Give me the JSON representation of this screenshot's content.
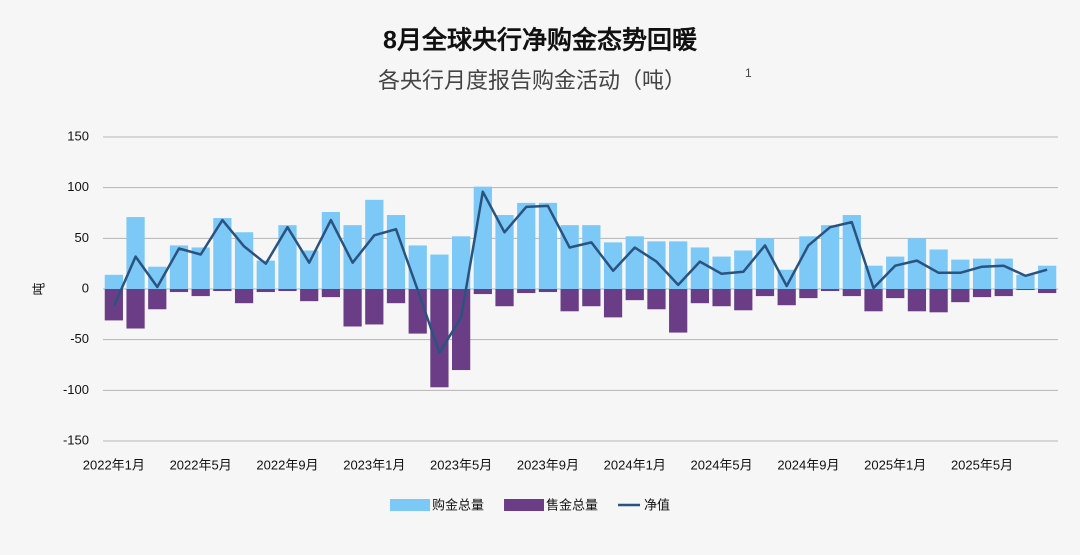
{
  "chart_data": {
    "type": "bar",
    "title": "8月全球央行净购金态势回暖",
    "subtitle": "各央行月度报告购金活动（吨）",
    "footnote_mark": "1",
    "y_label": "吨",
    "categories": [
      "2022年1月",
      null,
      null,
      null,
      "2022年5月",
      null,
      null,
      null,
      "2022年9月",
      null,
      null,
      null,
      "2023年1月",
      null,
      null,
      null,
      "2023年5月",
      null,
      null,
      null,
      "2023年9月",
      null,
      null,
      null,
      "2024年1月",
      null,
      null,
      null,
      "2024年5月",
      null,
      null,
      null,
      "2024年9月",
      null,
      null,
      null,
      "2025年1月",
      null,
      null,
      null,
      "2025年5月",
      null,
      null,
      null
    ],
    "series": [
      {
        "name": "购金总量",
        "type": "bar",
        "color": "#7cc8f7",
        "values": [
          14,
          71,
          22,
          43,
          41,
          70,
          56,
          28,
          63,
          38,
          76,
          63,
          88,
          73,
          43,
          34,
          52,
          101,
          73,
          85,
          85,
          63,
          63,
          46,
          52,
          47,
          47,
          41,
          32,
          38,
          50,
          19,
          52,
          63,
          73,
          23,
          32,
          50,
          39,
          29,
          30,
          30,
          14,
          23
        ]
      },
      {
        "name": "售金总量",
        "type": "bar",
        "color": "#6b3d87",
        "values": [
          -31,
          -39,
          -20,
          -3,
          -7,
          -2,
          -14,
          -3,
          -2,
          -12,
          -8,
          -37,
          -35,
          -14,
          -44,
          -97,
          -80,
          -5,
          -17,
          -4,
          -3,
          -22,
          -17,
          -28,
          -11,
          -20,
          -43,
          -14,
          -17,
          -21,
          -7,
          -16,
          -9,
          -2,
          -7,
          -22,
          -9,
          -22,
          -23,
          -13,
          -8,
          -7,
          -1,
          -4
        ]
      },
      {
        "name": "净值",
        "type": "line",
        "color": "#2b5380",
        "values": [
          -17,
          32,
          2,
          40,
          34,
          68,
          42,
          25,
          61,
          26,
          68,
          26,
          53,
          59,
          -1,
          -63,
          -28,
          96,
          56,
          81,
          82,
          41,
          46,
          18,
          41,
          27,
          4,
          27,
          15,
          17,
          43,
          3,
          43,
          61,
          66,
          1,
          23,
          28,
          16,
          16,
          22,
          23,
          13,
          19
        ]
      }
    ],
    "ylim": [
      -150,
      150
    ],
    "yticks": [
      150,
      100,
      50,
      0,
      -50,
      -100,
      -150
    ],
    "grid": true
  }
}
